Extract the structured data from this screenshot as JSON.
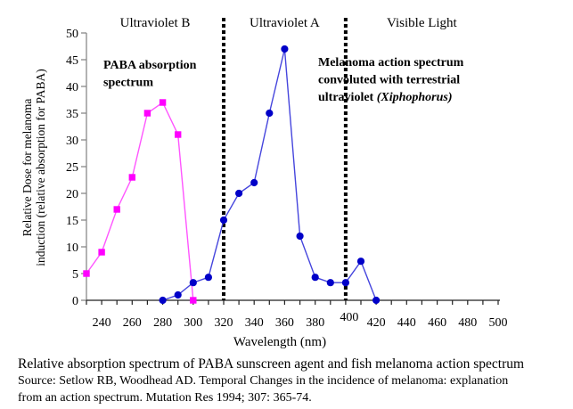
{
  "page": {
    "background": "#ffffff"
  },
  "chart_data": {
    "type": "line",
    "title": "",
    "xlabel": "Wavelength (nm)",
    "ylabel_line1": "Relative Dose for melanoma",
    "ylabel_line2": "induction (relative absorption for PABA)",
    "xlim": [
      230,
      500
    ],
    "ylim": [
      0,
      50
    ],
    "grid": false,
    "x_tick_interval": 10,
    "x_labeled_ticks": [
      240,
      260,
      280,
      300,
      320,
      340,
      360,
      380,
      400,
      420,
      440,
      460,
      480,
      500
    ],
    "y_ticks": [
      0,
      5,
      10,
      15,
      20,
      25,
      30,
      35,
      40,
      45,
      50
    ],
    "region_bands": [
      {
        "label": "Ultraviolet B",
        "from_nm": 230,
        "to_nm": 320
      },
      {
        "label": "Ultraviolet A",
        "from_nm": 320,
        "to_nm": 400
      },
      {
        "label": "Visible Light",
        "from_nm": 400,
        "to_nm": 500
      }
    ],
    "boundary_lines_nm": [
      320,
      400
    ],
    "boundary_line_color": "#000000",
    "series": [
      {
        "id": "paba",
        "name": "PABA absorption spectrum",
        "marker": "square",
        "marker_color": "#FF00FF",
        "line_color": "#FF55FF",
        "x": [
          230,
          240,
          250,
          260,
          270,
          280,
          290,
          300
        ],
        "y": [
          5,
          9,
          17,
          23,
          35,
          37,
          31,
          0
        ]
      },
      {
        "id": "melanoma",
        "name": "Melanoma action spectrum convoluted with terrestrial ultraviolet (Xiphophorus)",
        "marker": "circle",
        "marker_color": "#0000C8",
        "line_color": "#4545DD",
        "x": [
          280,
          290,
          300,
          310,
          320,
          330,
          340,
          350,
          360,
          370,
          380,
          390,
          400,
          410,
          420
        ],
        "y": [
          0,
          1,
          3.3,
          4.3,
          15,
          20,
          22,
          35,
          47,
          12,
          4.3,
          3.3,
          3.3,
          7.3,
          0
        ]
      }
    ],
    "annotations": [
      {
        "id": "paba-label",
        "lines": [
          "PABA absorption",
          "spectrum"
        ]
      },
      {
        "id": "melanoma-label",
        "lines": [
          "Melanoma action spectrum",
          "convoluted with terrestrial",
          "ultraviolet "
        ],
        "italic_tail": "(Xiphophorus)"
      }
    ]
  },
  "caption": {
    "title": "Relative absorption spectrum of PABA sunscreen agent and fish melanoma action spectrum",
    "source_line1": "Source: Setlow RB, Woodhead AD. Temporal Changes in the incidence of melanoma: explanation",
    "source_line2": "from an action spectrum. Mutation Res 1994; 307: 365-74."
  }
}
